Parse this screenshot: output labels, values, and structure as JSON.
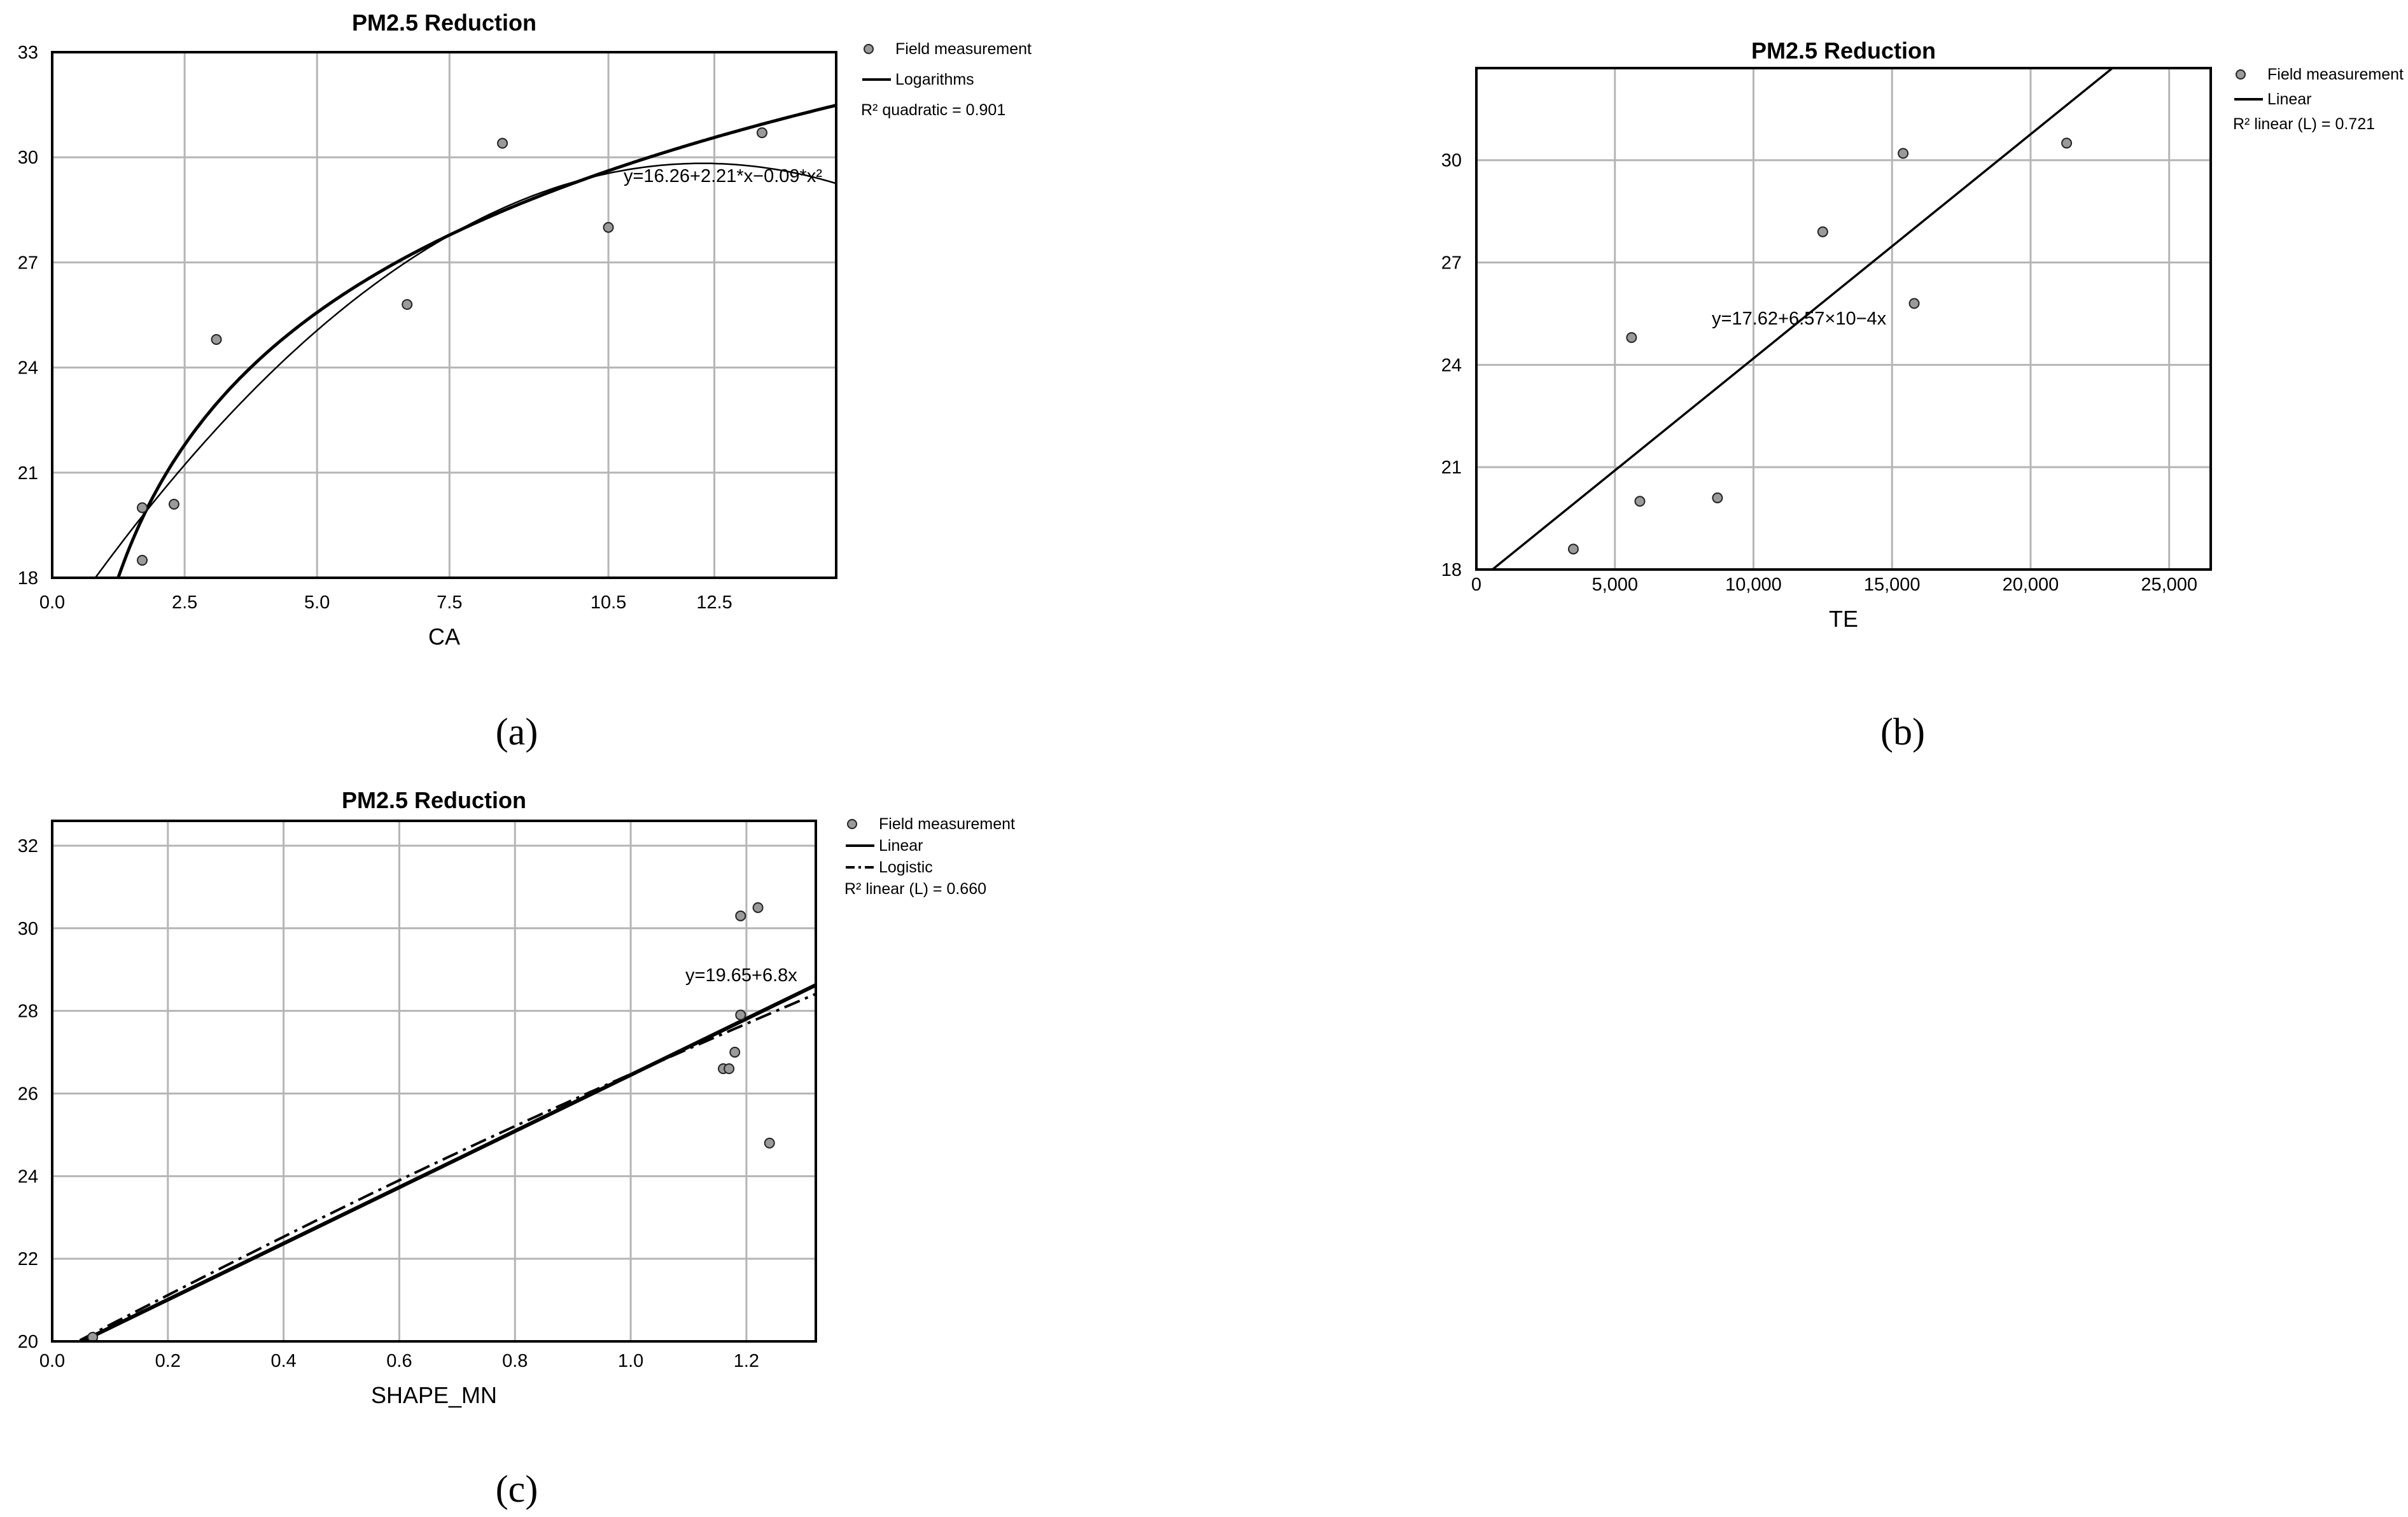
{
  "chart_data": [
    {
      "id": "a",
      "type": "scatter",
      "panel_label": "(a)",
      "title": "PM2.5 Reduction",
      "xlabel": "CA",
      "ylabel": "",
      "xlim": [
        0,
        14.8
      ],
      "ylim": [
        18,
        33
      ],
      "xticks": [
        0,
        2.5,
        5,
        7.5,
        10.5,
        12.5
      ],
      "xtick_labels": [
        "0.0",
        "2.5",
        "5.0",
        "7.5",
        "10.5",
        "12.5"
      ],
      "yticks": [
        18,
        21,
        24,
        27,
        30,
        33
      ],
      "ytick_labels": [
        "18",
        "21",
        "24",
        "27",
        "30",
        "33"
      ],
      "grid": true,
      "legend": [
        "Field measurement",
        "Logarithms",
        "R² quadratic = 0.901"
      ],
      "equation": "y=16.26+2.21*x−0.09*x²",
      "points": [
        {
          "x": 1.7,
          "y": 20.0
        },
        {
          "x": 1.7,
          "y": 18.5
        },
        {
          "x": 2.3,
          "y": 20.1
        },
        {
          "x": 3.1,
          "y": 24.8
        },
        {
          "x": 6.7,
          "y": 25.8
        },
        {
          "x": 8.5,
          "y": 30.4
        },
        {
          "x": 10.5,
          "y": 28.0
        },
        {
          "x": 13.4,
          "y": 30.7
        }
      ],
      "quadratic": {
        "a": 16.26,
        "b": 2.21,
        "c": -0.09
      },
      "logarithmic": {
        "a": 16.8,
        "b": 5.45
      }
    },
    {
      "id": "b",
      "type": "scatter",
      "panel_label": "(b)",
      "title": "PM2.5 Reduction",
      "xlabel": "TE",
      "ylabel": "",
      "xlim": [
        0,
        26500
      ],
      "ylim": [
        18,
        32.7
      ],
      "xticks": [
        0,
        5000,
        10000,
        15000,
        20000,
        25000
      ],
      "xtick_labels": [
        "0",
        "5,000",
        "10,000",
        "15,000",
        "20,000",
        "25,000"
      ],
      "yticks": [
        18,
        21,
        24,
        27,
        30
      ],
      "ytick_labels": [
        "18",
        "21",
        "24",
        "27",
        "30"
      ],
      "grid": true,
      "legend": [
        "Field measurement",
        "Linear",
        "R² linear (L) = 0.721"
      ],
      "equation": "y=17.62+6.57×10−4x",
      "points": [
        {
          "x": 3500,
          "y": 18.6
        },
        {
          "x": 5600,
          "y": 24.8
        },
        {
          "x": 5900,
          "y": 20.0
        },
        {
          "x": 8700,
          "y": 20.1
        },
        {
          "x": 12500,
          "y": 27.9
        },
        {
          "x": 15400,
          "y": 30.2
        },
        {
          "x": 15800,
          "y": 25.8
        },
        {
          "x": 21300,
          "y": 30.5
        }
      ],
      "linear": {
        "a": 17.62,
        "b": 0.000657
      }
    },
    {
      "id": "c",
      "type": "scatter",
      "panel_label": "(c)",
      "title": "PM2.5 Reduction",
      "xlabel": "SHAPE_MN",
      "ylabel": "",
      "xlim": [
        0,
        1.32
      ],
      "ylim": [
        20,
        32.6
      ],
      "xticks": [
        0,
        0.2,
        0.4,
        0.6,
        0.8,
        1.0,
        1.2
      ],
      "xtick_labels": [
        "0.0",
        "0.2",
        "0.4",
        "0.6",
        "0.8",
        "1.0",
        "1.2"
      ],
      "yticks": [
        20,
        22,
        24,
        26,
        28,
        30,
        32
      ],
      "ytick_labels": [
        "20",
        "22",
        "24",
        "26",
        "28",
        "30",
        "32"
      ],
      "grid": true,
      "legend": [
        "Field measurement",
        "Linear",
        "Logistic",
        "R² linear (L) = 0.660"
      ],
      "equation": "y=19.65+6.8x",
      "points": [
        {
          "x": 0.07,
          "y": 20.1
        },
        {
          "x": 1.16,
          "y": 26.6
        },
        {
          "x": 1.17,
          "y": 26.6
        },
        {
          "x": 1.18,
          "y": 27.0
        },
        {
          "x": 1.19,
          "y": 27.9
        },
        {
          "x": 1.19,
          "y": 30.3
        },
        {
          "x": 1.22,
          "y": 30.5
        },
        {
          "x": 1.24,
          "y": 24.8
        }
      ],
      "linear": {
        "a": 19.65,
        "b": 6.8
      },
      "logistic": {
        "a": 19.68,
        "b": 6.62,
        "c": 0.25
      }
    }
  ]
}
